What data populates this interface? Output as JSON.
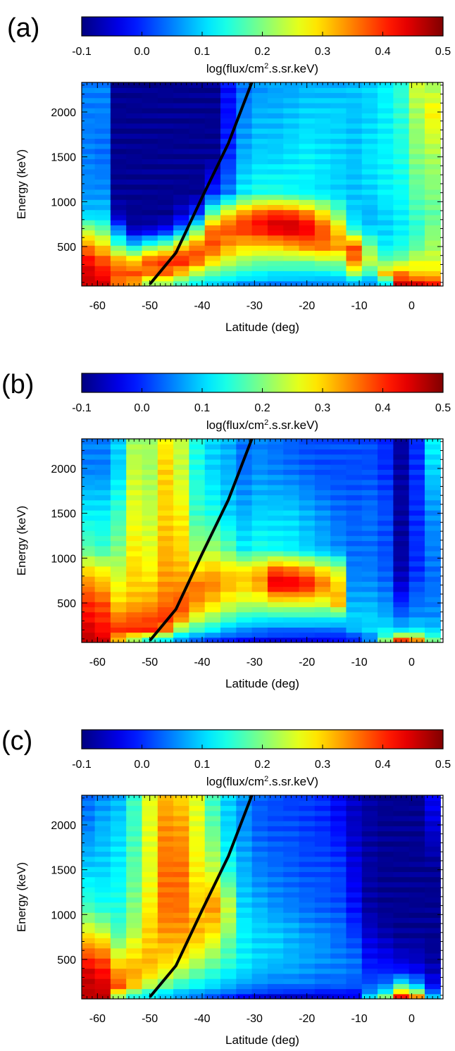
{
  "figure": {
    "colorbar": {
      "label_pre": "log(flux/cm",
      "label_sup": "2",
      "label_post": ".s.sr.keV)",
      "ticks": [
        "-0.1",
        "0.0",
        "0.1",
        "0.2",
        "0.3",
        "0.4",
        "0.5"
      ],
      "range": [
        -0.1,
        0.5
      ],
      "colormap": "jet"
    },
    "xaxis": {
      "label": "Latitude (deg)",
      "ticks": [
        "-60",
        "-50",
        "-40",
        "-30",
        "-20",
        "-10",
        "0"
      ],
      "range": [
        -63,
        6
      ]
    },
    "yaxis": {
      "label": "Energy (keV)",
      "ticks": [
        "500",
        "1000",
        "1500",
        "2000"
      ],
      "range": [
        60,
        2330
      ]
    },
    "colors": {
      "curve": "#000000",
      "jet_stops": [
        "#00008f",
        "#0000ff",
        "#00ffff",
        "#ffff00",
        "#ff0000",
        "#800000"
      ]
    },
    "panel_labels": [
      "(a)",
      "(b)",
      "(c)"
    ]
  },
  "chart_data": [
    {
      "type": "heatmap",
      "panel": "(a)",
      "xlabel": "Latitude (deg)",
      "ylabel": "Energy (keV)",
      "xlim": [
        -63,
        6
      ],
      "ylim": [
        60,
        2330
      ],
      "zlabel": "log(flux/cm2.s.sr.keV)",
      "zlim": [
        -0.1,
        0.5
      ],
      "columns_lat": [
        -62,
        -59,
        -56,
        -53,
        -50,
        -47,
        -44,
        -41,
        -38,
        -35,
        -32,
        -29,
        -26,
        -23,
        -20,
        -17,
        -14,
        -11,
        -8,
        -5,
        -2,
        1,
        4
      ],
      "energy_knots": [
        80,
        200,
        350,
        500,
        700,
        850,
        1100,
        1500,
        2000,
        2300
      ],
      "values": [
        [
          0.45,
          0.45,
          0.42,
          0.35,
          0.22,
          0.1,
          0.06,
          0.05,
          0.05,
          0.05
        ],
        [
          0.45,
          0.42,
          0.38,
          0.3,
          0.18,
          0.1,
          0.06,
          0.04,
          0.05,
          0.05
        ],
        [
          0.35,
          0.38,
          0.33,
          0.18,
          0.05,
          -0.07,
          -0.09,
          -0.09,
          -0.09,
          -0.09
        ],
        [
          0.32,
          0.38,
          0.3,
          0.12,
          -0.07,
          -0.09,
          -0.09,
          -0.09,
          -0.09,
          -0.09
        ],
        [
          0.2,
          0.35,
          0.38,
          0.18,
          -0.06,
          -0.09,
          -0.09,
          -0.09,
          -0.09,
          -0.09
        ],
        [
          0.2,
          0.36,
          0.4,
          0.22,
          -0.03,
          -0.09,
          -0.09,
          -0.09,
          -0.09,
          -0.09
        ],
        [
          0.15,
          0.3,
          0.42,
          0.3,
          0.05,
          -0.05,
          -0.09,
          -0.09,
          -0.09,
          -0.09
        ],
        [
          0.12,
          0.22,
          0.38,
          0.36,
          0.18,
          0.02,
          -0.09,
          -0.09,
          -0.09,
          -0.09
        ],
        [
          0.1,
          0.18,
          0.3,
          0.38,
          0.36,
          0.2,
          0.0,
          -0.09,
          -0.09,
          -0.09
        ],
        [
          0.08,
          0.16,
          0.25,
          0.33,
          0.38,
          0.3,
          0.05,
          0.0,
          -0.02,
          -0.02
        ],
        [
          0.06,
          0.14,
          0.22,
          0.3,
          0.4,
          0.36,
          0.12,
          0.08,
          0.05,
          0.04
        ],
        [
          0.06,
          0.13,
          0.2,
          0.3,
          0.42,
          0.4,
          0.14,
          0.1,
          0.08,
          0.06
        ],
        [
          0.05,
          0.12,
          0.2,
          0.3,
          0.45,
          0.42,
          0.14,
          0.1,
          0.08,
          0.07
        ],
        [
          0.05,
          0.12,
          0.2,
          0.32,
          0.46,
          0.41,
          0.13,
          0.11,
          0.09,
          0.07
        ],
        [
          0.05,
          0.12,
          0.2,
          0.35,
          0.44,
          0.37,
          0.12,
          0.12,
          0.1,
          0.08
        ],
        [
          0.05,
          0.12,
          0.22,
          0.36,
          0.38,
          0.3,
          0.11,
          0.11,
          0.1,
          0.08
        ],
        [
          0.05,
          0.13,
          0.22,
          0.34,
          0.3,
          0.2,
          0.1,
          0.1,
          0.1,
          0.08
        ],
        [
          0.06,
          0.22,
          0.36,
          0.38,
          0.14,
          0.1,
          0.09,
          0.09,
          0.09,
          0.09
        ],
        [
          0.05,
          0.15,
          0.25,
          0.2,
          0.1,
          0.08,
          0.1,
          0.11,
          0.1,
          0.1
        ],
        [
          0.1,
          0.3,
          0.18,
          0.12,
          0.1,
          0.1,
          0.12,
          0.12,
          0.12,
          0.12
        ],
        [
          0.45,
          0.35,
          0.2,
          0.14,
          0.12,
          0.12,
          0.13,
          0.14,
          0.15,
          0.15
        ],
        [
          0.45,
          0.3,
          0.25,
          0.18,
          0.15,
          0.16,
          0.18,
          0.2,
          0.22,
          0.25
        ],
        [
          0.42,
          0.3,
          0.25,
          0.22,
          0.2,
          0.18,
          0.2,
          0.22,
          0.28,
          0.22
        ]
      ],
      "curve": {
        "x": [
          -50,
          -45,
          -40,
          -35,
          -30.5
        ],
        "y": [
          80,
          430,
          1050,
          1650,
          2330
        ]
      }
    },
    {
      "type": "heatmap",
      "panel": "(b)",
      "xlabel": "Latitude (deg)",
      "ylabel": "Energy (keV)",
      "xlim": [
        -63,
        6
      ],
      "ylim": [
        60,
        2330
      ],
      "zlabel": "log(flux/cm2.s.sr.keV)",
      "zlim": [
        -0.1,
        0.5
      ],
      "columns_lat": [
        -62,
        -59,
        -56,
        -53,
        -50,
        -47,
        -44,
        -41,
        -38,
        -35,
        -32,
        -29,
        -26,
        -23,
        -20,
        -17,
        -14,
        -11,
        -8,
        -5,
        -2,
        1,
        4
      ],
      "energy_knots": [
        80,
        200,
        350,
        500,
        700,
        850,
        1100,
        1500,
        2000,
        2300
      ],
      "values": [
        [
          0.46,
          0.45,
          0.42,
          0.4,
          0.35,
          0.3,
          0.18,
          0.12,
          0.05,
          0.05
        ],
        [
          0.45,
          0.42,
          0.4,
          0.38,
          0.32,
          0.28,
          0.16,
          0.12,
          0.05,
          0.05
        ],
        [
          0.3,
          0.4,
          0.35,
          0.3,
          0.27,
          0.24,
          0.2,
          0.16,
          0.1,
          0.1
        ],
        [
          0.2,
          0.4,
          0.37,
          0.32,
          0.3,
          0.3,
          0.28,
          0.26,
          0.24,
          0.22
        ],
        [
          0.12,
          0.4,
          0.38,
          0.33,
          0.3,
          0.28,
          0.26,
          0.24,
          0.22,
          0.22
        ],
        [
          0.1,
          0.35,
          0.4,
          0.36,
          0.34,
          0.33,
          0.32,
          0.3,
          0.3,
          0.28
        ],
        [
          0.05,
          0.2,
          0.36,
          0.38,
          0.34,
          0.32,
          0.3,
          0.28,
          0.24,
          0.24
        ],
        [
          0.02,
          0.15,
          0.26,
          0.34,
          0.36,
          0.3,
          0.22,
          0.16,
          0.14,
          0.14
        ],
        [
          0.0,
          0.12,
          0.22,
          0.3,
          0.35,
          0.32,
          0.22,
          0.14,
          0.1,
          0.1
        ],
        [
          -0.01,
          0.08,
          0.18,
          0.26,
          0.32,
          0.3,
          0.18,
          0.1,
          0.08,
          0.08
        ],
        [
          -0.02,
          0.06,
          0.15,
          0.24,
          0.3,
          0.3,
          0.12,
          0.08,
          0.04,
          0.04
        ],
        [
          -0.03,
          0.05,
          0.14,
          0.24,
          0.33,
          0.32,
          0.14,
          0.1,
          0.06,
          0.05
        ],
        [
          -0.04,
          0.04,
          0.14,
          0.26,
          0.44,
          0.4,
          0.13,
          0.1,
          0.05,
          0.04
        ],
        [
          -0.04,
          0.04,
          0.14,
          0.26,
          0.44,
          0.38,
          0.12,
          0.1,
          0.04,
          0.03
        ],
        [
          -0.04,
          0.04,
          0.14,
          0.26,
          0.42,
          0.35,
          0.1,
          0.08,
          0.03,
          0.02
        ],
        [
          -0.04,
          0.04,
          0.14,
          0.25,
          0.36,
          0.3,
          0.08,
          0.06,
          0.02,
          0.02
        ],
        [
          -0.03,
          0.04,
          0.14,
          0.32,
          0.3,
          0.25,
          0.06,
          0.04,
          0.02,
          0.02
        ],
        [
          -0.02,
          0.08,
          0.1,
          0.08,
          0.06,
          0.05,
          0.04,
          0.03,
          0.02,
          0.02
        ],
        [
          0.04,
          0.1,
          0.1,
          0.08,
          0.06,
          0.05,
          0.04,
          0.04,
          0.02,
          0.02
        ],
        [
          0.2,
          0.12,
          0.08,
          0.06,
          0.04,
          0.03,
          0.02,
          0.02,
          0.0,
          0.0
        ],
        [
          0.4,
          0.1,
          0.04,
          0.0,
          -0.05,
          -0.07,
          -0.08,
          -0.08,
          -0.08,
          -0.08
        ],
        [
          0.35,
          0.12,
          0.06,
          0.04,
          0.02,
          0.0,
          0.0,
          0.0,
          0.0,
          0.0
        ],
        [
          0.2,
          0.1,
          0.06,
          0.05,
          0.04,
          0.04,
          0.05,
          0.06,
          0.1,
          0.12
        ]
      ],
      "curve": {
        "x": [
          -50,
          -45,
          -40,
          -35,
          -30.5
        ],
        "y": [
          80,
          430,
          1050,
          1650,
          2330
        ]
      }
    },
    {
      "type": "heatmap",
      "panel": "(c)",
      "xlabel": "Latitude (deg)",
      "ylabel": "Energy (keV)",
      "xlim": [
        -63,
        6
      ],
      "ylim": [
        60,
        2330
      ],
      "zlabel": "log(flux/cm2.s.sr.keV)",
      "zlim": [
        -0.1,
        0.5
      ],
      "columns_lat": [
        -62,
        -59,
        -56,
        -53,
        -50,
        -47,
        -44,
        -41,
        -38,
        -35,
        -32,
        -29,
        -26,
        -23,
        -20,
        -17,
        -14,
        -11,
        -8,
        -5,
        -2,
        1,
        4
      ],
      "energy_knots": [
        80,
        200,
        350,
        500,
        700,
        850,
        1100,
        1500,
        2000,
        2300
      ],
      "values": [
        [
          0.46,
          0.46,
          0.45,
          0.4,
          0.32,
          0.25,
          0.16,
          0.1,
          0.05,
          0.04
        ],
        [
          0.46,
          0.45,
          0.42,
          0.38,
          0.3,
          0.22,
          0.14,
          0.1,
          0.08,
          0.06
        ],
        [
          0.2,
          0.38,
          0.34,
          0.28,
          0.2,
          0.16,
          0.14,
          0.12,
          0.1,
          0.08
        ],
        [
          0.12,
          0.3,
          0.33,
          0.3,
          0.26,
          0.22,
          0.2,
          0.18,
          0.16,
          0.16
        ],
        [
          0.1,
          0.22,
          0.3,
          0.32,
          0.3,
          0.3,
          0.28,
          0.26,
          0.26,
          0.26
        ],
        [
          0.08,
          0.18,
          0.26,
          0.3,
          0.32,
          0.34,
          0.36,
          0.36,
          0.34,
          0.32
        ],
        [
          0.06,
          0.14,
          0.22,
          0.28,
          0.32,
          0.34,
          0.36,
          0.36,
          0.33,
          0.3
        ],
        [
          0.04,
          0.12,
          0.18,
          0.24,
          0.3,
          0.32,
          0.3,
          0.28,
          0.26,
          0.26
        ],
        [
          0.02,
          0.1,
          0.15,
          0.2,
          0.26,
          0.3,
          0.34,
          0.24,
          0.18,
          0.16
        ],
        [
          0.0,
          0.08,
          0.12,
          0.16,
          0.18,
          0.22,
          0.24,
          0.14,
          0.1,
          0.1
        ],
        [
          -0.02,
          0.06,
          0.1,
          0.12,
          0.12,
          0.12,
          0.1,
          0.08,
          0.06,
          0.06
        ],
        [
          -0.04,
          0.05,
          0.08,
          0.1,
          0.1,
          0.1,
          0.08,
          0.05,
          0.03,
          0.03
        ],
        [
          -0.05,
          0.04,
          0.07,
          0.09,
          0.1,
          0.09,
          0.06,
          0.04,
          0.02,
          0.02
        ],
        [
          -0.06,
          0.04,
          0.07,
          0.08,
          0.08,
          0.08,
          0.05,
          0.03,
          0.02,
          0.01
        ],
        [
          -0.06,
          0.04,
          0.06,
          0.07,
          0.07,
          0.06,
          0.04,
          0.02,
          0.01,
          0.01
        ],
        [
          -0.06,
          0.03,
          0.05,
          0.06,
          0.06,
          0.05,
          0.03,
          0.02,
          0.0,
          0.0
        ],
        [
          -0.05,
          0.03,
          0.05,
          0.05,
          0.04,
          0.04,
          0.02,
          0.01,
          -0.02,
          -0.03
        ],
        [
          -0.04,
          0.02,
          0.04,
          0.04,
          0.02,
          0.0,
          -0.02,
          -0.04,
          -0.06,
          -0.06
        ],
        [
          0.1,
          0.03,
          0.0,
          -0.02,
          -0.04,
          -0.06,
          -0.08,
          -0.08,
          -0.08,
          -0.08
        ],
        [
          0.2,
          0.06,
          0.0,
          -0.03,
          -0.06,
          -0.08,
          -0.09,
          -0.09,
          -0.09,
          -0.09
        ],
        [
          0.42,
          0.18,
          0.0,
          -0.05,
          -0.08,
          -0.09,
          -0.09,
          -0.09,
          -0.09,
          -0.09
        ],
        [
          0.35,
          0.1,
          -0.02,
          -0.06,
          -0.08,
          -0.09,
          -0.09,
          -0.09,
          -0.09,
          -0.09
        ],
        [
          0.1,
          -0.02,
          -0.06,
          -0.08,
          -0.09,
          -0.09,
          -0.09,
          -0.09,
          -0.05,
          -0.03
        ]
      ],
      "curve": {
        "x": [
          -50,
          -45,
          -40,
          -35,
          -30.5
        ],
        "y": [
          80,
          430,
          1050,
          1650,
          2330
        ]
      }
    }
  ]
}
